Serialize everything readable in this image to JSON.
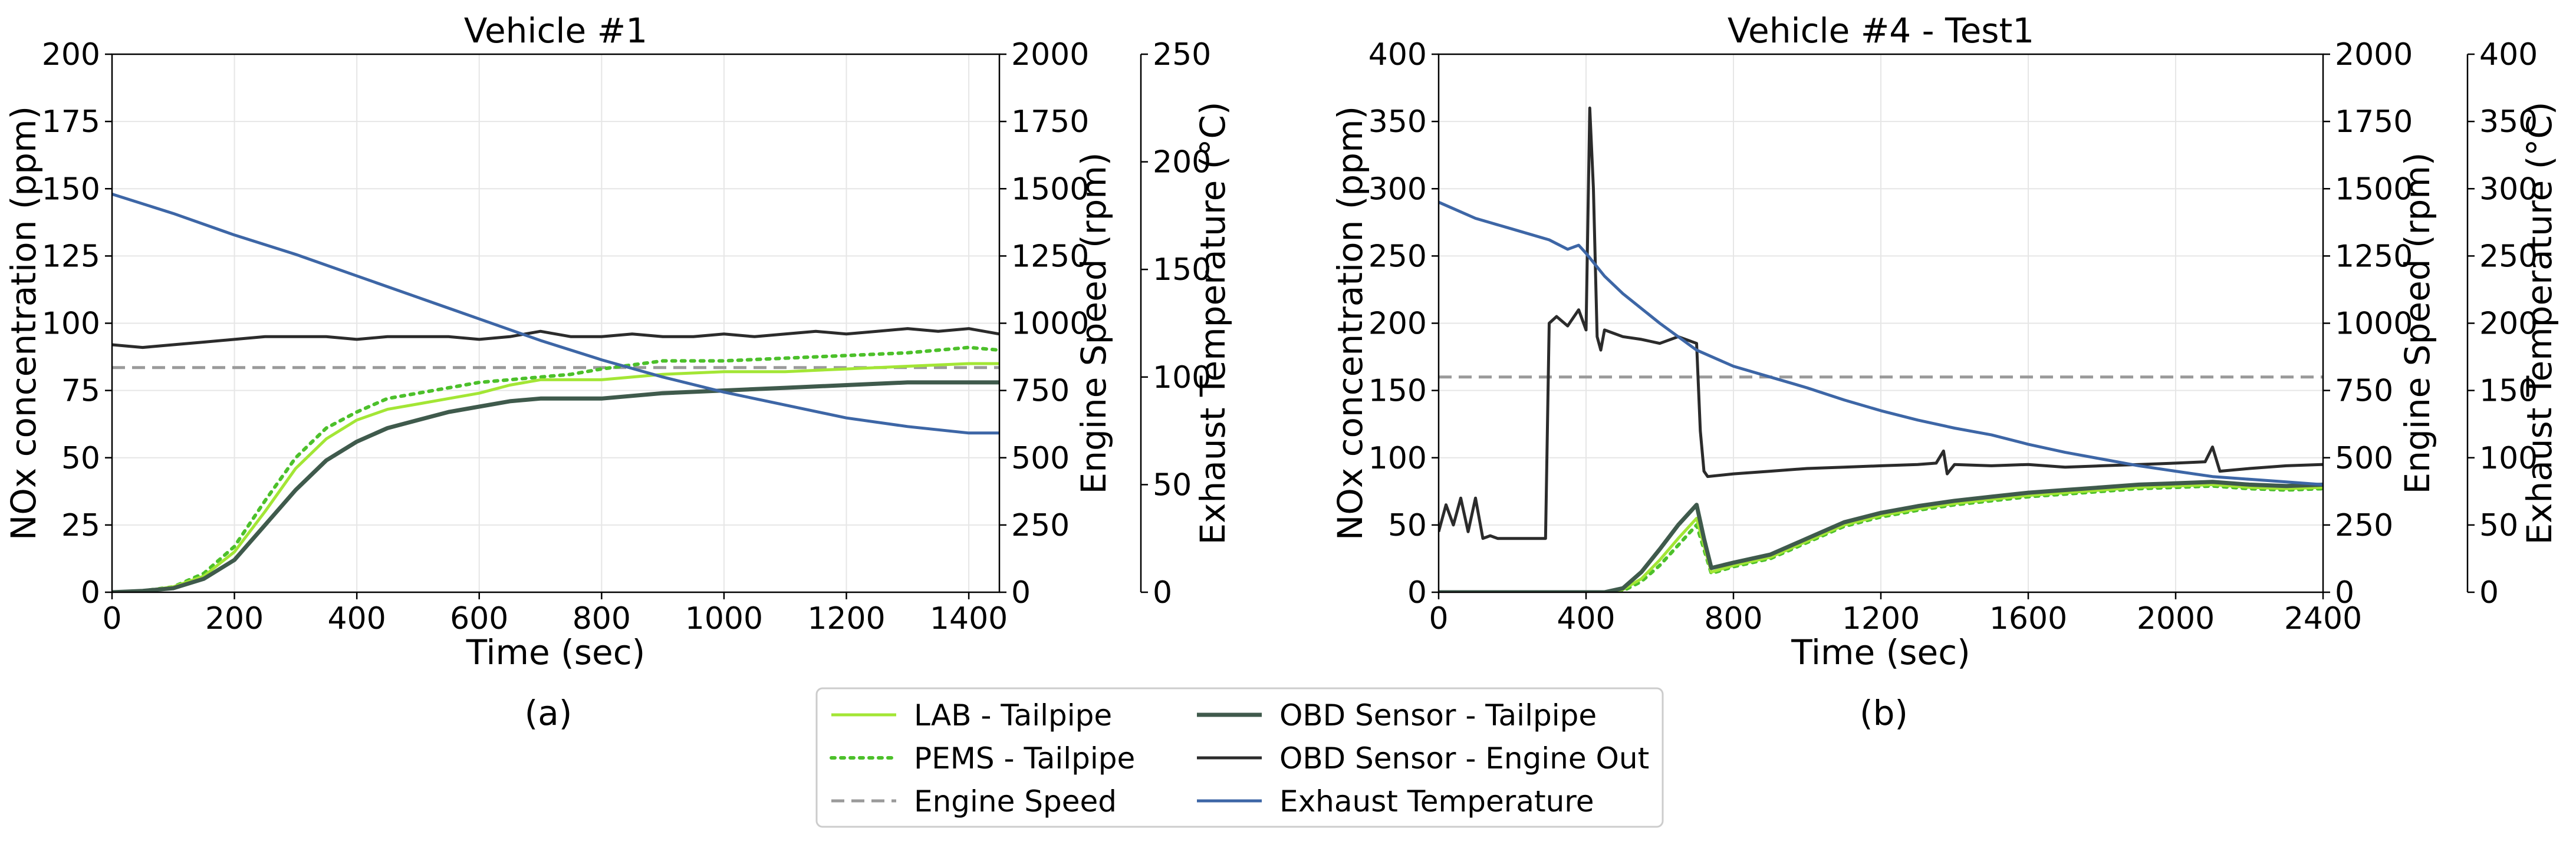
{
  "chart_data": [
    {
      "panel_label": "(a)",
      "type": "line",
      "title": "Vehicle #1",
      "xlabel": "Time (sec)",
      "ylabel_left": "NOx concentration (ppm)",
      "ylabel_right1": "Engine Speed (rpm)",
      "ylabel_right2": "Exhaust Temperature (°C)",
      "xlim": [
        0,
        1450
      ],
      "ylim_left": [
        0,
        200
      ],
      "ylim_right1": [
        0,
        2000
      ],
      "ylim_right2": [
        0,
        250
      ],
      "xticks": [
        0,
        200,
        400,
        600,
        800,
        1000,
        1200,
        1400
      ],
      "yticks_left": [
        0,
        25,
        50,
        75,
        100,
        125,
        150,
        175,
        200
      ],
      "yticks_right1": [
        0,
        250,
        500,
        750,
        1000,
        1250,
        1500,
        1750,
        2000
      ],
      "yticks_right2": [
        0,
        50,
        100,
        150,
        200,
        250
      ],
      "grid": true,
      "series": [
        {
          "name": "LAB - Tailpipe",
          "axis": "left",
          "x": [
            0,
            50,
            100,
            150,
            200,
            250,
            300,
            350,
            400,
            450,
            500,
            550,
            600,
            650,
            700,
            750,
            800,
            900,
            1000,
            1100,
            1200,
            1300,
            1400,
            1450
          ],
          "y": [
            0,
            0.5,
            2,
            6,
            15,
            30,
            46,
            57,
            64,
            68,
            70,
            72,
            74,
            77,
            79,
            79,
            79,
            81,
            82,
            82,
            83,
            84,
            85,
            85
          ]
        },
        {
          "name": "PEMS - Tailpipe",
          "axis": "left",
          "x": [
            0,
            50,
            100,
            150,
            200,
            250,
            300,
            350,
            400,
            450,
            500,
            550,
            600,
            650,
            700,
            750,
            800,
            900,
            1000,
            1100,
            1200,
            1300,
            1400,
            1450
          ],
          "y": [
            0,
            0.5,
            2,
            7,
            17,
            34,
            50,
            61,
            67,
            72,
            74,
            76,
            78,
            79,
            80,
            81,
            83,
            86,
            86,
            87,
            88,
            89,
            91,
            90
          ]
        },
        {
          "name": "Engine Speed",
          "axis": "right1",
          "x": [
            0,
            1450
          ],
          "y": [
            835,
            835
          ]
        },
        {
          "name": "OBD Sensor - Tailpipe",
          "axis": "left",
          "x": [
            0,
            50,
            100,
            150,
            200,
            250,
            300,
            350,
            400,
            450,
            500,
            550,
            600,
            650,
            700,
            750,
            800,
            900,
            1000,
            1100,
            1200,
            1300,
            1400,
            1450
          ],
          "y": [
            0,
            0.5,
            1.5,
            5,
            12,
            25,
            38,
            49,
            56,
            61,
            64,
            67,
            69,
            71,
            72,
            72,
            72,
            74,
            75,
            76,
            77,
            78,
            78,
            78
          ]
        },
        {
          "name": "OBD Sensor - Engine Out",
          "axis": "left",
          "x": [
            0,
            50,
            100,
            150,
            200,
            250,
            300,
            350,
            400,
            450,
            500,
            550,
            600,
            650,
            700,
            750,
            800,
            850,
            900,
            950,
            1000,
            1050,
            1100,
            1150,
            1200,
            1250,
            1300,
            1350,
            1400,
            1450
          ],
          "y": [
            92,
            91,
            92,
            93,
            94,
            95,
            95,
            95,
            94,
            95,
            95,
            95,
            94,
            95,
            97,
            95,
            95,
            96,
            95,
            95,
            96,
            95,
            96,
            97,
            96,
            97,
            98,
            97,
            98,
            96
          ]
        },
        {
          "name": "Exhaust Temperature",
          "axis": "right2",
          "x": [
            0,
            100,
            200,
            300,
            400,
            500,
            600,
            700,
            800,
            900,
            1000,
            1100,
            1200,
            1300,
            1400,
            1450
          ],
          "y": [
            185,
            176,
            166,
            157,
            147,
            137,
            127,
            117,
            108,
            100,
            93,
            87,
            81,
            77,
            74,
            74
          ]
        }
      ]
    },
    {
      "panel_label": "(b)",
      "type": "line",
      "title": "Vehicle #4 - Test1",
      "xlabel": "Time (sec)",
      "ylabel_left": "NOx concentration (ppm)",
      "ylabel_right1": "Engine Speed (rpm)",
      "ylabel_right2": "Exhaust Temperature (°C)",
      "xlim": [
        0,
        2400
      ],
      "ylim_left": [
        0,
        400
      ],
      "ylim_right1": [
        0,
        2000
      ],
      "ylim_right2": [
        0,
        400
      ],
      "xticks": [
        0,
        400,
        800,
        1200,
        1600,
        2000,
        2400
      ],
      "yticks_left": [
        0,
        50,
        100,
        150,
        200,
        250,
        300,
        350,
        400
      ],
      "yticks_right1": [
        0,
        250,
        500,
        750,
        1000,
        1250,
        1500,
        1750,
        2000
      ],
      "yticks_right2": [
        0,
        50,
        100,
        150,
        200,
        250,
        300,
        350,
        400
      ],
      "grid": true,
      "series": [
        {
          "name": "LAB - Tailpipe",
          "axis": "left",
          "x": [
            0,
            300,
            450,
            500,
            550,
            600,
            650,
            700,
            720,
            740,
            800,
            900,
            1000,
            1100,
            1200,
            1300,
            1400,
            1500,
            1600,
            1700,
            1800,
            1900,
            2000,
            2100,
            2200,
            2300,
            2400
          ],
          "y": [
            0,
            0,
            0,
            2,
            10,
            24,
            40,
            55,
            35,
            15,
            20,
            26,
            38,
            50,
            57,
            62,
            66,
            69,
            72,
            74,
            76,
            78,
            79,
            80,
            78,
            77,
            78
          ]
        },
        {
          "name": "PEMS - Tailpipe",
          "axis": "left",
          "x": [
            0,
            300,
            450,
            500,
            550,
            600,
            650,
            700,
            720,
            740,
            800,
            900,
            1000,
            1100,
            1200,
            1300,
            1400,
            1500,
            1600,
            1700,
            1800,
            1900,
            2000,
            2100,
            2200,
            2300,
            2400
          ],
          "y": [
            0,
            0,
            0,
            1,
            8,
            20,
            35,
            50,
            32,
            14,
            19,
            25,
            37,
            49,
            56,
            61,
            65,
            68,
            71,
            73,
            75,
            77,
            78,
            79,
            77,
            76,
            77
          ]
        },
        {
          "name": "Engine Speed",
          "axis": "right1",
          "x": [
            0,
            2400
          ],
          "y": [
            800,
            800
          ]
        },
        {
          "name": "OBD Sensor - Tailpipe",
          "axis": "left",
          "x": [
            0,
            300,
            450,
            500,
            550,
            600,
            650,
            700,
            720,
            740,
            800,
            900,
            1000,
            1100,
            1200,
            1300,
            1400,
            1500,
            1600,
            1700,
            1800,
            1900,
            2000,
            2100,
            2200,
            2300,
            2400
          ],
          "y": [
            0,
            0,
            0,
            3,
            15,
            32,
            50,
            65,
            40,
            18,
            22,
            28,
            40,
            52,
            59,
            64,
            68,
            71,
            74,
            76,
            78,
            80,
            81,
            82,
            80,
            79,
            80
          ]
        },
        {
          "name": "OBD Sensor - Engine Out",
          "axis": "left",
          "x": [
            0,
            20,
            40,
            60,
            80,
            100,
            120,
            140,
            160,
            180,
            200,
            250,
            290,
            300,
            320,
            350,
            380,
            400,
            410,
            420,
            430,
            440,
            450,
            500,
            550,
            600,
            650,
            700,
            710,
            720,
            730,
            800,
            900,
            1000,
            1100,
            1200,
            1300,
            1350,
            1370,
            1380,
            1400,
            1500,
            1600,
            1700,
            1800,
            1900,
            2000,
            2080,
            2100,
            2120,
            2200,
            2300,
            2400
          ],
          "y": [
            45,
            65,
            50,
            70,
            45,
            70,
            40,
            42,
            40,
            40,
            40,
            40,
            40,
            200,
            205,
            198,
            210,
            195,
            360,
            300,
            190,
            180,
            195,
            190,
            188,
            185,
            190,
            185,
            120,
            90,
            86,
            88,
            90,
            92,
            93,
            94,
            95,
            96,
            105,
            88,
            95,
            94,
            95,
            93,
            94,
            95,
            96,
            97,
            108,
            90,
            92,
            94,
            95
          ]
        },
        {
          "name": "Exhaust Temperature",
          "axis": "right2",
          "x": [
            0,
            100,
            200,
            300,
            350,
            380,
            400,
            450,
            500,
            600,
            700,
            800,
            900,
            1000,
            1100,
            1200,
            1300,
            1400,
            1500,
            1600,
            1700,
            1800,
            1900,
            2000,
            2100,
            2200,
            2300,
            2400
          ],
          "y": [
            290,
            278,
            270,
            262,
            255,
            258,
            252,
            235,
            222,
            200,
            180,
            168,
            160,
            152,
            143,
            135,
            128,
            122,
            117,
            110,
            104,
            99,
            94,
            90,
            86,
            84,
            82,
            80
          ]
        }
      ]
    }
  ],
  "legend": {
    "placement": "bottom-center",
    "items": [
      {
        "label": "LAB - Tailpipe",
        "color": "#a3e635",
        "style": "solid"
      },
      {
        "label": "PEMS - Tailpipe",
        "color": "#4cc02a",
        "style": "dotted"
      },
      {
        "label": "Engine Speed",
        "color": "#9a9a9a",
        "style": "dashed"
      },
      {
        "label": "OBD Sensor - Tailpipe",
        "color": "#3f5a4c",
        "style": "solid"
      },
      {
        "label": "OBD Sensor - Engine Out",
        "color": "#2b2b2b",
        "style": "solid"
      },
      {
        "label": "Exhaust Temperature",
        "color": "#3d66a6",
        "style": "solid"
      }
    ]
  }
}
